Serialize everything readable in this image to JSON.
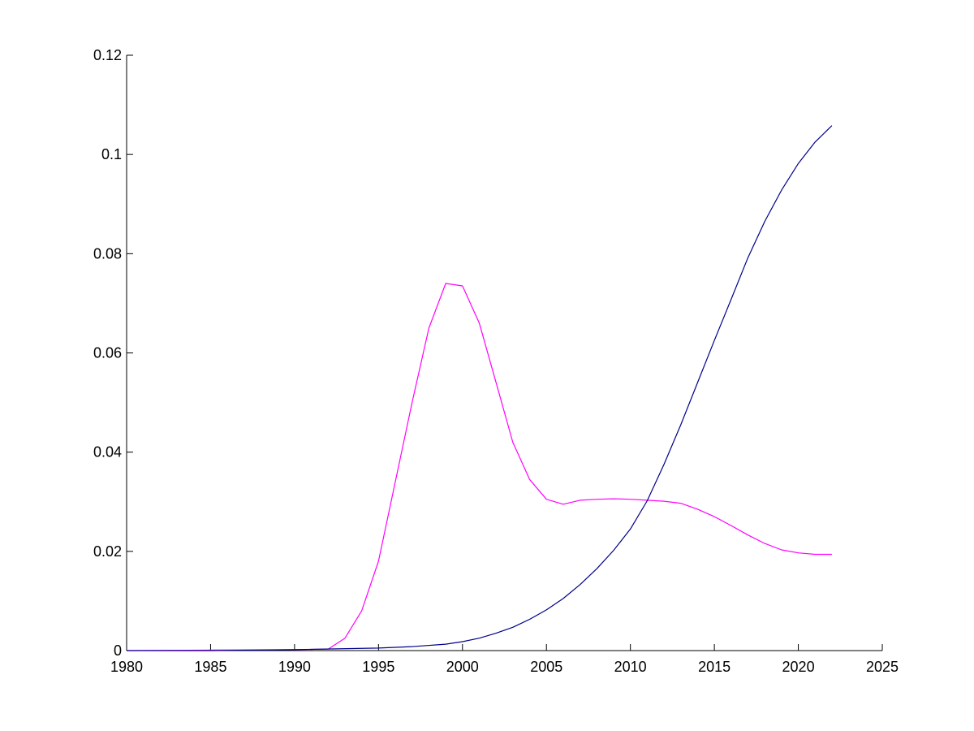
{
  "chart_data": {
    "type": "line",
    "title": "",
    "xlabel": "",
    "ylabel": "",
    "xlim": [
      1980,
      2025
    ],
    "ylim": [
      0,
      0.12
    ],
    "xticks": [
      1980,
      1985,
      1990,
      1995,
      2000,
      2005,
      2010,
      2015,
      2020,
      2025
    ],
    "xtick_labels": [
      "1980",
      "1985",
      "1990",
      "1995",
      "2000",
      "2005",
      "2010",
      "2015",
      "2020",
      "2025"
    ],
    "yticks": [
      0,
      0.02,
      0.04,
      0.06,
      0.08,
      0.1,
      0.12
    ],
    "ytick_labels": [
      "0",
      "0.02",
      "0.04",
      "0.06",
      "0.08",
      "0.1",
      "0.12"
    ],
    "grid": false,
    "legend": "none",
    "series": [
      {
        "color": "#ff00ff",
        "x": [
          1980,
          1985,
          1990,
          1992,
          1993,
          1994,
          1995,
          1996,
          1997,
          1998,
          1999,
          2000,
          2001,
          2002,
          2003,
          2004,
          2005,
          2006,
          2007,
          2008,
          2009,
          2010,
          2011,
          2012,
          2013,
          2014,
          2015,
          2016,
          2017,
          2018,
          2019,
          2020,
          2021,
          2022
        ],
        "y": [
          0,
          0.0001,
          0.0002,
          0.0003,
          0.0025,
          0.008,
          0.018,
          0.034,
          0.05,
          0.065,
          0.074,
          0.0735,
          0.066,
          0.054,
          0.042,
          0.0345,
          0.0305,
          0.0295,
          0.0303,
          0.0305,
          0.0306,
          0.0305,
          0.0303,
          0.0301,
          0.0297,
          0.0285,
          0.027,
          0.0252,
          0.0233,
          0.0216,
          0.0203,
          0.0197,
          0.0194,
          0.0194
        ]
      },
      {
        "color": "#00008b",
        "x": [
          1980,
          1985,
          1990,
          1995,
          1997,
          1999,
          2000,
          2001,
          2002,
          2003,
          2004,
          2005,
          2006,
          2007,
          2008,
          2009,
          2010,
          2011,
          2012,
          2013,
          2014,
          2015,
          2016,
          2017,
          2018,
          2019,
          2020,
          2021,
          2022
        ],
        "y": [
          0,
          0,
          0.0002,
          0.0005,
          0.0008,
          0.0013,
          0.0018,
          0.0025,
          0.0035,
          0.0047,
          0.0063,
          0.0082,
          0.0105,
          0.0133,
          0.0165,
          0.0202,
          0.0245,
          0.0302,
          0.0375,
          0.0455,
          0.054,
          0.0625,
          0.0708,
          0.0792,
          0.0865,
          0.0928,
          0.0982,
          0.1025,
          0.1058
        ]
      }
    ]
  }
}
